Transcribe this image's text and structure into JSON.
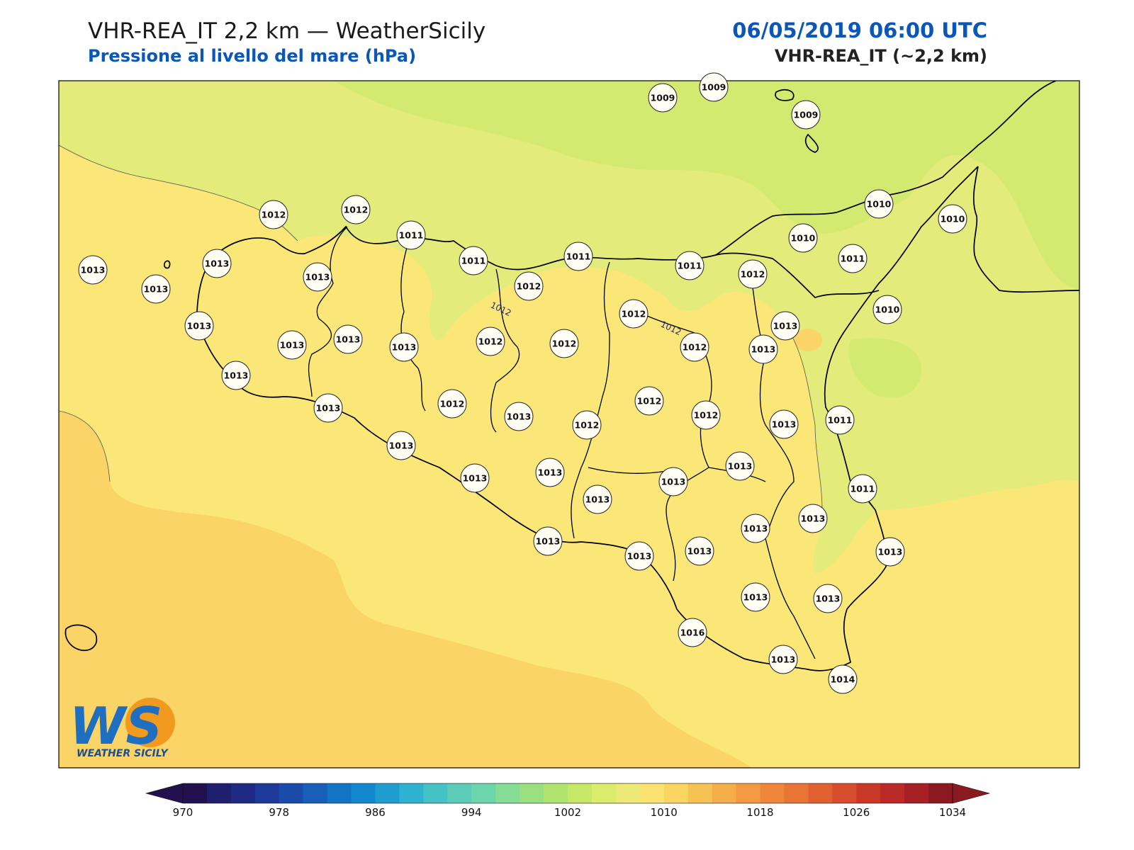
{
  "header": {
    "title": "VHR-REA_IT 2,2 km — WeatherSicily",
    "subtitle": "Pressione al livello del mare (hPa)",
    "datetime": "06/05/2019 06:00 UTC",
    "model": "VHR-REA_IT (~2,2 km)"
  },
  "colors": {
    "accent_blue": "#0a57b8",
    "field_1009": "#d3e96f",
    "field_1011": "#e3eb7a",
    "field_1013": "#fbe777",
    "field_1015": "#fad466"
  },
  "contour_labels": [
    "1012",
    "1012"
  ],
  "stations": [
    {
      "value": "1009"
    },
    {
      "value": "1009"
    },
    {
      "value": "1009"
    },
    {
      "value": "1010"
    },
    {
      "value": "1010"
    },
    {
      "value": "1010"
    },
    {
      "value": "1010"
    },
    {
      "value": "1011"
    },
    {
      "value": "1011"
    },
    {
      "value": "1011"
    },
    {
      "value": "1011"
    },
    {
      "value": "1011"
    },
    {
      "value": "1011"
    },
    {
      "value": "1011"
    },
    {
      "value": "1012"
    },
    {
      "value": "1012"
    },
    {
      "value": "1012"
    },
    {
      "value": "1012"
    },
    {
      "value": "1012"
    },
    {
      "value": "1012"
    },
    {
      "value": "1012"
    },
    {
      "value": "1012"
    },
    {
      "value": "1012"
    },
    {
      "value": "1012"
    },
    {
      "value": "1012"
    },
    {
      "value": "1012"
    },
    {
      "value": "1013"
    },
    {
      "value": "1013"
    },
    {
      "value": "1013"
    },
    {
      "value": "1013"
    },
    {
      "value": "1013"
    },
    {
      "value": "1013"
    },
    {
      "value": "1013"
    },
    {
      "value": "1013"
    },
    {
      "value": "1013"
    },
    {
      "value": "1013"
    },
    {
      "value": "1013"
    },
    {
      "value": "1013"
    },
    {
      "value": "1013"
    },
    {
      "value": "1013"
    },
    {
      "value": "1013"
    },
    {
      "value": "1013"
    },
    {
      "value": "1013"
    },
    {
      "value": "1013"
    },
    {
      "value": "1013"
    },
    {
      "value": "1013"
    },
    {
      "value": "1013"
    },
    {
      "value": "1013"
    },
    {
      "value": "1013"
    },
    {
      "value": "1013"
    },
    {
      "value": "1013"
    },
    {
      "value": "1013"
    },
    {
      "value": "1013"
    },
    {
      "value": "1013"
    },
    {
      "value": "1013"
    },
    {
      "value": "1014"
    },
    {
      "value": "1016"
    }
  ],
  "colorbar": {
    "min": 970,
    "max": 1034,
    "step": 2,
    "tick_labels": [
      "970",
      "978",
      "986",
      "994",
      "1002",
      "1010",
      "1018",
      "1026",
      "1034"
    ],
    "colors": [
      "#22104f",
      "#1f1f6e",
      "#1f2a85",
      "#1d3a9a",
      "#1b4ba9",
      "#175fb8",
      "#1474c4",
      "#1488cf",
      "#1f9dd1",
      "#2fb2cf",
      "#45c2c6",
      "#5cccb9",
      "#6dd5ac",
      "#85dc95",
      "#9be080",
      "#b0e46f",
      "#c5e866",
      "#dbec6c",
      "#ece977",
      "#fbe372",
      "#fad561",
      "#f7c254",
      "#f5ad49",
      "#f39a42",
      "#ef863c",
      "#e87436",
      "#e06030",
      "#d64c2c",
      "#ca3928",
      "#bb2a26",
      "#a61f24",
      "#8a1a20"
    ]
  },
  "logo": {
    "letters": "WS",
    "text": "WEATHER SICILY"
  }
}
